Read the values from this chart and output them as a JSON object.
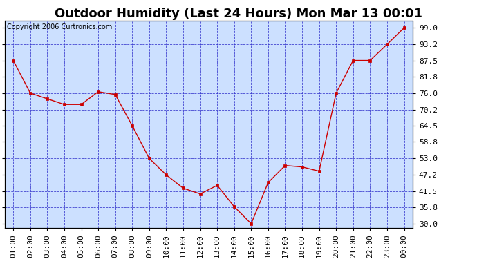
{
  "title": "Outdoor Humidity (Last 24 Hours) Mon Mar 13 00:01",
  "copyright": "Copyright 2006 Curtronics.com",
  "x_labels": [
    "01:00",
    "02:00",
    "03:00",
    "04:00",
    "05:00",
    "06:00",
    "07:00",
    "08:00",
    "09:00",
    "10:00",
    "11:00",
    "12:00",
    "13:00",
    "14:00",
    "15:00",
    "16:00",
    "17:00",
    "18:00",
    "19:00",
    "20:00",
    "21:00",
    "22:00",
    "23:00",
    "00:00"
  ],
  "y_values": [
    87.5,
    76.0,
    74.0,
    72.0,
    72.0,
    76.5,
    75.5,
    64.5,
    53.0,
    47.2,
    42.5,
    40.5,
    43.5,
    36.0,
    30.0,
    44.5,
    50.5,
    50.0,
    48.5,
    76.0,
    87.5,
    87.5,
    93.2,
    99.0
  ],
  "y_ticks": [
    30.0,
    35.8,
    41.5,
    47.2,
    53.0,
    58.8,
    64.5,
    70.2,
    76.0,
    81.8,
    87.5,
    93.2,
    99.0
  ],
  "ylim": [
    28.5,
    101.5
  ],
  "line_color": "#cc0000",
  "marker_color": "#cc0000",
  "bg_color": "#cce0ff",
  "outer_bg": "#ffffff",
  "grid_color": "#3333cc",
  "title_fontsize": 13,
  "copyright_fontsize": 7,
  "tick_fontsize": 8,
  "ylabel_right": [
    "99.0",
    "93.2",
    "87.5",
    "81.8",
    "76.0",
    "70.2",
    "64.5",
    "58.8",
    "53.0",
    "47.2",
    "41.5",
    "35.8",
    "30.0"
  ]
}
